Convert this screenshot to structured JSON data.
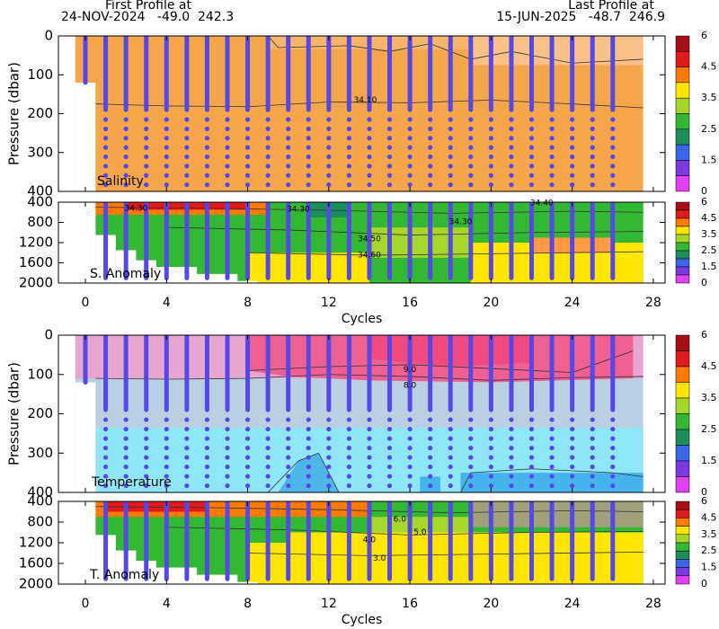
{
  "header": {
    "first_label": "First Profile at",
    "first_profile": "24-NOV-2024   -49.0  242.3",
    "last_label": "Last Profile at",
    "last_profile": "15-JUN-2025   -48.7  246.9"
  },
  "profile_cycles": [
    0,
    1,
    2,
    3,
    4,
    5,
    6,
    7,
    8,
    9,
    10,
    11,
    12,
    13,
    14,
    15,
    16,
    17,
    18,
    19,
    20,
    21,
    22,
    23,
    24,
    25,
    26
  ],
  "chart_data": [
    {
      "type": "heatmap",
      "name": "salinity",
      "label": "Salinity",
      "ylabel": "Pressure (dbar)",
      "xlim": [
        -1.33,
        28.58
      ],
      "xticks": [
        0,
        4,
        8,
        12,
        16,
        20,
        24,
        28
      ],
      "ylim": [
        0,
        400
      ],
      "yticks": [
        0,
        100,
        200,
        300,
        400
      ],
      "y_inverted": true,
      "annotations": [
        "34.10"
      ],
      "colorbar": {
        "colors": [
          "#a50f15",
          "#e31a1c",
          "#ff7a00",
          "#ffe600",
          "#a6d62a",
          "#33b833",
          "#1a8f5a",
          "#3a66e8",
          "#7a3ae0",
          "#e040f0"
        ],
        "ticks": [
          6,
          4.5,
          3.5,
          2.5,
          1.5,
          0
        ]
      }
    },
    {
      "type": "heatmap",
      "name": "salinity-anomaly",
      "label": "S. Anomaly",
      "xlabel": "Cycles",
      "xlim": [
        -1.33,
        28.58
      ],
      "xticks": [
        0,
        4,
        8,
        12,
        16,
        20,
        24,
        28
      ],
      "ylim": [
        400,
        2000
      ],
      "yticks": [
        400,
        800,
        1200,
        1600,
        2000
      ],
      "y_inverted": true,
      "annotations": [
        "34.30",
        "34.30",
        "34.30",
        "34.40",
        "34.50",
        "34.60"
      ],
      "colorbar": {
        "colors": [
          "#a50f15",
          "#e31a1c",
          "#ff7a00",
          "#ffe600",
          "#a6d62a",
          "#33b833",
          "#1a8f5a",
          "#3a66e8",
          "#7a3ae0",
          "#e040f0"
        ],
        "ticks": [
          6,
          4.5,
          3.5,
          2.5,
          1.5,
          0
        ]
      }
    },
    {
      "type": "heatmap",
      "name": "temperature",
      "label": "Temperature",
      "ylabel": "Pressure (dbar)",
      "xlim": [
        -1.33,
        28.58
      ],
      "xticks": [
        0,
        4,
        8,
        12,
        16,
        20,
        24,
        28
      ],
      "ylim": [
        0,
        400
      ],
      "yticks": [
        0,
        100,
        200,
        300,
        400
      ],
      "y_inverted": true,
      "annotations": [
        "9.0",
        "8.0"
      ],
      "colorbar": {
        "colors": [
          "#a50f15",
          "#e31a1c",
          "#ff7a00",
          "#ffe600",
          "#a6d62a",
          "#33b833",
          "#1a8f5a",
          "#3a66e8",
          "#7a3ae0",
          "#e040f0"
        ],
        "ticks": [
          6,
          4.5,
          3.5,
          2.5,
          1.5,
          0
        ]
      }
    },
    {
      "type": "heatmap",
      "name": "temperature-anomaly",
      "label": "T. Anomaly",
      "xlabel": "Cycles",
      "xlim": [
        -1.33,
        28.58
      ],
      "xticks": [
        0,
        4,
        8,
        12,
        16,
        20,
        24,
        28
      ],
      "ylim": [
        400,
        2000
      ],
      "yticks": [
        400,
        800,
        1200,
        1600,
        2000
      ],
      "y_inverted": true,
      "annotations": [
        "6.0",
        "5.0",
        "4.0",
        "3.0"
      ],
      "colorbar": {
        "colors": [
          "#a50f15",
          "#e31a1c",
          "#ff7a00",
          "#ffe600",
          "#a6d62a",
          "#33b833",
          "#1a8f5a",
          "#3a66e8",
          "#7a3ae0",
          "#e040f0"
        ],
        "ticks": [
          6,
          4.5,
          3.5,
          2.5,
          1.5,
          0
        ]
      }
    }
  ]
}
